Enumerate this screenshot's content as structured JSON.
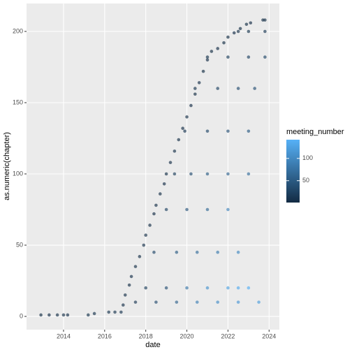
{
  "chart_data": {
    "type": "scatter",
    "xlabel": "date",
    "ylabel": "as.numeric(chapter)",
    "xlim": [
      2012.2,
      2024.5
    ],
    "ylim": [
      -9.3,
      219.6
    ],
    "xticks": [
      2014,
      2016,
      2018,
      2020,
      2022,
      2024
    ],
    "yticks": [
      0,
      50,
      100,
      150,
      200
    ],
    "grid": true,
    "opacity": 0.65,
    "x": [
      2012.9,
      2013.3,
      2013.7,
      2014.0,
      2014.2,
      2015.2,
      2015.5,
      2016.2,
      2016.5,
      2016.8,
      2016.9,
      2017.0,
      2017.2,
      2017.3,
      2017.5,
      2017.7,
      2017.9,
      2018.0,
      2018.2,
      2018.4,
      2018.5,
      2018.7,
      2018.9,
      2019.0,
      2019.2,
      2019.4,
      2019.6,
      2019.8,
      2020.0,
      2020.2,
      2020.4,
      2020.6,
      2020.8,
      2021.0,
      2021.2,
      2021.5,
      2021.8,
      2022.0,
      2022.3,
      2022.6,
      2022.9,
      2023.1,
      2023.7,
      2023.8,
      2018,
      2019,
      2020,
      2021,
      2022,
      2022.5,
      2023.0,
      2017.5,
      2018.5,
      2019.5,
      2020.5,
      2021.5,
      2022.5,
      2023.5,
      2018.4,
      2019.5,
      2020.5,
      2021.5,
      2022.5,
      2019,
      2020,
      2021,
      2022,
      2019.4,
      2020.2,
      2021,
      2022,
      2023,
      2019.9,
      2021,
      2022,
      2023,
      2020.4,
      2021.5,
      2022.5,
      2023.3,
      2021,
      2022,
      2023,
      2023.8,
      2022.5,
      2023.0,
      2023.8
    ],
    "y": [
      1,
      1,
      1,
      1,
      1,
      1,
      2,
      3,
      3,
      3,
      8,
      15,
      22,
      28,
      35,
      42,
      50,
      57,
      64,
      72,
      78,
      86,
      93,
      100,
      108,
      116,
      124,
      132,
      140,
      148,
      156,
      164,
      172,
      180,
      186,
      188,
      192,
      196,
      199,
      202,
      205,
      206,
      208,
      208,
      20,
      20,
      20,
      20,
      20,
      20,
      20,
      10,
      10,
      10,
      10,
      10,
      10,
      10,
      45,
      45,
      45,
      45,
      45,
      75,
      75,
      75,
      75,
      100,
      100,
      100,
      100,
      100,
      130,
      130,
      130,
      130,
      160,
      160,
      160,
      160,
      182,
      182,
      182,
      182,
      200,
      200,
      200
    ],
    "meeting_number": [
      2,
      3,
      4,
      5,
      6,
      8,
      9,
      10,
      11,
      12,
      6,
      5,
      4,
      6,
      5,
      4,
      6,
      5,
      4,
      3,
      5,
      4,
      3,
      4,
      3,
      5,
      4,
      3,
      4,
      3,
      2,
      3,
      2,
      3,
      2,
      3,
      2,
      2,
      3,
      2,
      2,
      3,
      4,
      5,
      20,
      40,
      80,
      110,
      125,
      135,
      140,
      15,
      35,
      60,
      90,
      105,
      115,
      120,
      30,
      50,
      70,
      85,
      100,
      25,
      45,
      65,
      95,
      20,
      35,
      50,
      60,
      70,
      15,
      30,
      40,
      50,
      10,
      25,
      35,
      40,
      8,
      20,
      25,
      30,
      5,
      10,
      15
    ],
    "legend": {
      "title": "meeting_number",
      "lim": [
        1,
        142
      ],
      "ticks": [
        50,
        100
      ],
      "low_color": "#132B43",
      "high_color": "#56B1F7"
    }
  }
}
